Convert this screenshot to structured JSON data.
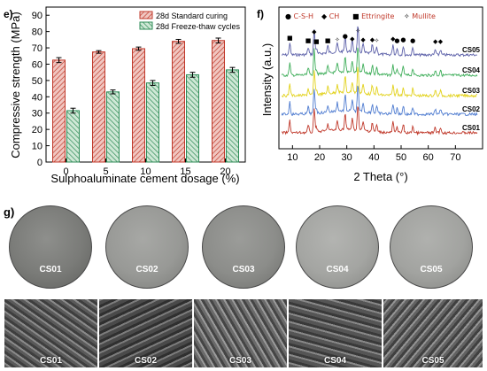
{
  "chart_data": [
    {
      "type": "bar",
      "panel": "e)",
      "categories": [
        "0",
        "5",
        "10",
        "15",
        "20"
      ],
      "xlabel": "Sulphoaluminate cement dosage (%)",
      "ylabel": "Compressive strength (MPa)",
      "ylim": [
        0,
        95
      ],
      "yticks": [
        "0",
        "10",
        "20",
        "30",
        "40",
        "50",
        "60",
        "70",
        "80",
        "90"
      ],
      "legend_placement": "top-right",
      "series": [
        {
          "name": "28d Standard curing",
          "values": [
            62.5,
            67.5,
            69.5,
            74,
            74.5
          ],
          "errors": [
            1.5,
            0.8,
            1.0,
            1.2,
            1.5
          ],
          "color": "#c0392b"
        },
        {
          "name": "28d Freeze-thaw cycles",
          "values": [
            31.5,
            43,
            48.5,
            53.5,
            56.5
          ],
          "errors": [
            1.5,
            1.2,
            1.5,
            1.5,
            1.5
          ],
          "color": "#2e8b57"
        }
      ]
    },
    {
      "type": "line",
      "panel": "f)",
      "xlabel": "2 Theta (°)",
      "ylabel": "Intensity (a.u.)",
      "xlim": [
        5,
        80
      ],
      "xticks": [
        "10",
        "20",
        "30",
        "40",
        "50",
        "60",
        "70"
      ],
      "legend": [
        {
          "symbol": "●",
          "label": "C-S-H"
        },
        {
          "symbol": "◆",
          "label": "CH"
        },
        {
          "symbol": "■",
          "label": "Ettringite"
        },
        {
          "symbol": "✧",
          "label": "Mullite"
        }
      ],
      "series": [
        {
          "name": "CS05",
          "color": "#5b5fa8"
        },
        {
          "name": "CS04",
          "color": "#3fae5a"
        },
        {
          "name": "CS03",
          "color": "#e2d21c"
        },
        {
          "name": "CS02",
          "color": "#4e7bd0"
        },
        {
          "name": "CS01",
          "color": "#c0392b"
        }
      ],
      "peaks": [
        {
          "x": 9,
          "mark": "■"
        },
        {
          "x": 15.8,
          "mark": "■"
        },
        {
          "x": 18,
          "mark": "◆"
        },
        {
          "x": 18.8,
          "mark": "■"
        },
        {
          "x": 23,
          "mark": "■"
        },
        {
          "x": 26.5,
          "mark": "✧"
        },
        {
          "x": 29.4,
          "mark": "●"
        },
        {
          "x": 32,
          "mark": "◆"
        },
        {
          "x": 34.1,
          "mark": "✧"
        },
        {
          "x": 36,
          "mark": "◆"
        },
        {
          "x": 39.4,
          "mark": "◆"
        },
        {
          "x": 41,
          "mark": "✧"
        },
        {
          "x": 47,
          "mark": "◆"
        },
        {
          "x": 48.5,
          "mark": "●"
        },
        {
          "x": 50.8,
          "mark": "●"
        },
        {
          "x": 54.3,
          "mark": "●"
        },
        {
          "x": 62.6,
          "mark": "◆"
        },
        {
          "x": 64.5,
          "mark": "◆"
        }
      ]
    }
  ],
  "panel_g": {
    "tag": "g)",
    "samples": [
      "CS01",
      "CS02",
      "CS03",
      "CS04",
      "CS05"
    ]
  }
}
